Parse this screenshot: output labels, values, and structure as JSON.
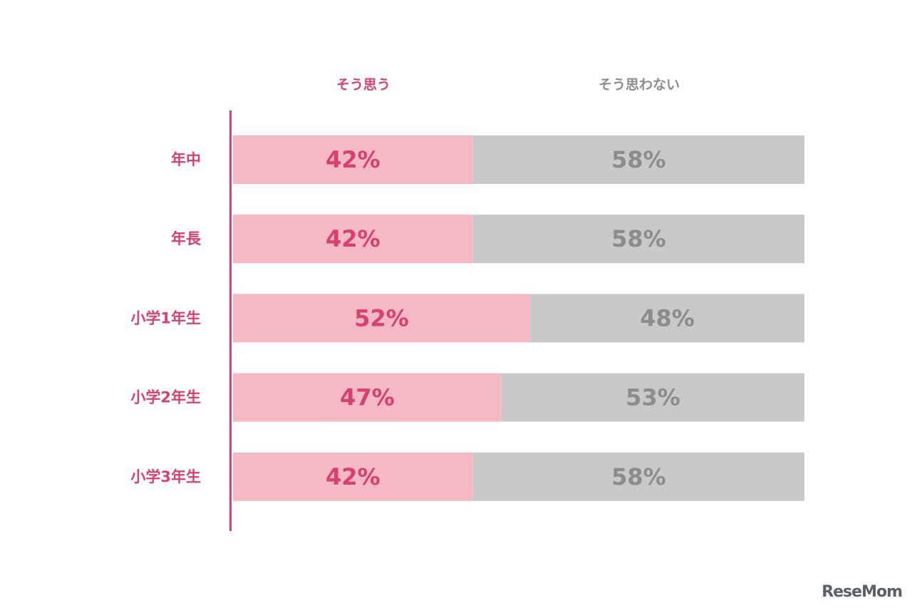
{
  "colors": {
    "agree_bar": "#f4b9c2",
    "disagree_bar": "#c8c9ca",
    "agree_text": "#d8406f",
    "disagree_text": "#8c8c8c",
    "axis": "#d8406f",
    "watermark": "#5a6066"
  },
  "chart_data": {
    "type": "bar",
    "orientation": "horizontal",
    "stacked": true,
    "percent": true,
    "categories": [
      "年中",
      "年長",
      "小学1年生",
      "小学2年生",
      "小学3年生"
    ],
    "series": [
      {
        "name": "そう思う",
        "values": [
          42,
          42,
          52,
          47,
          42
        ]
      },
      {
        "name": "そう思わない",
        "values": [
          58,
          58,
          48,
          53,
          58
        ]
      }
    ],
    "value_labels": [
      [
        "42%",
        "42%",
        "52%",
        "47%",
        "42%"
      ],
      [
        "58%",
        "58%",
        "48%",
        "53%",
        "58%"
      ]
    ],
    "xlim": [
      0,
      100
    ],
    "legend_position": "top",
    "grid": false
  },
  "watermark": {
    "text": "ReseMom"
  }
}
